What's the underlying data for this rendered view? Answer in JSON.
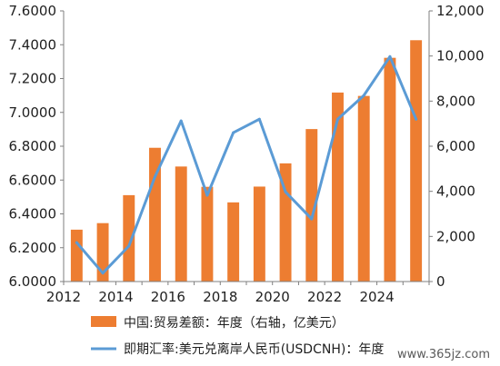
{
  "chart_data": {
    "type": "bar+line",
    "categories": [
      "2012",
      "2013",
      "2014",
      "2015",
      "2016",
      "2017",
      "2018",
      "2019",
      "2020",
      "2021",
      "2022",
      "2023",
      "2024",
      "2025"
    ],
    "x_tick_labels": [
      "2012",
      "2014",
      "2016",
      "2018",
      "2020",
      "2022",
      "2024"
    ],
    "series": [
      {
        "name": "中国:贸易差额：年度（右轴，亿美元）",
        "type": "bar",
        "axis": "right",
        "color": "#ED7D31",
        "values": [
          2300,
          2590,
          3830,
          5930,
          5100,
          4200,
          3510,
          4210,
          5240,
          6760,
          8380,
          8230,
          9920,
          10700
        ]
      },
      {
        "name": "即期汇率:美元兑离岸人民币(USDCNH)：年度",
        "type": "line",
        "axis": "left",
        "color": "#5B9BD5",
        "values": [
          6.23,
          6.05,
          6.21,
          6.62,
          6.95,
          6.51,
          6.88,
          6.96,
          6.53,
          6.37,
          6.96,
          7.1,
          7.33,
          6.96
        ]
      }
    ],
    "y_left": {
      "range": [
        6.0,
        7.6
      ],
      "ticks": [
        "6.0000",
        "6.2000",
        "6.4000",
        "6.6000",
        "6.8000",
        "7.0000",
        "7.2000",
        "7.4000",
        "7.6000"
      ]
    },
    "y_right": {
      "range": [
        0,
        12000
      ],
      "ticks": [
        "0",
        "2,000",
        "4,000",
        "6,000",
        "8,000",
        "10,000",
        "12,000"
      ]
    },
    "grid": false,
    "legend_position": "bottom"
  },
  "legend": {
    "bar_label": "中国:贸易差额：年度（右轴，亿美元）",
    "line_label": "即期汇率:美元兑离岸人民币(USDCNH)：年度"
  },
  "watermark": "www.365jz.com"
}
